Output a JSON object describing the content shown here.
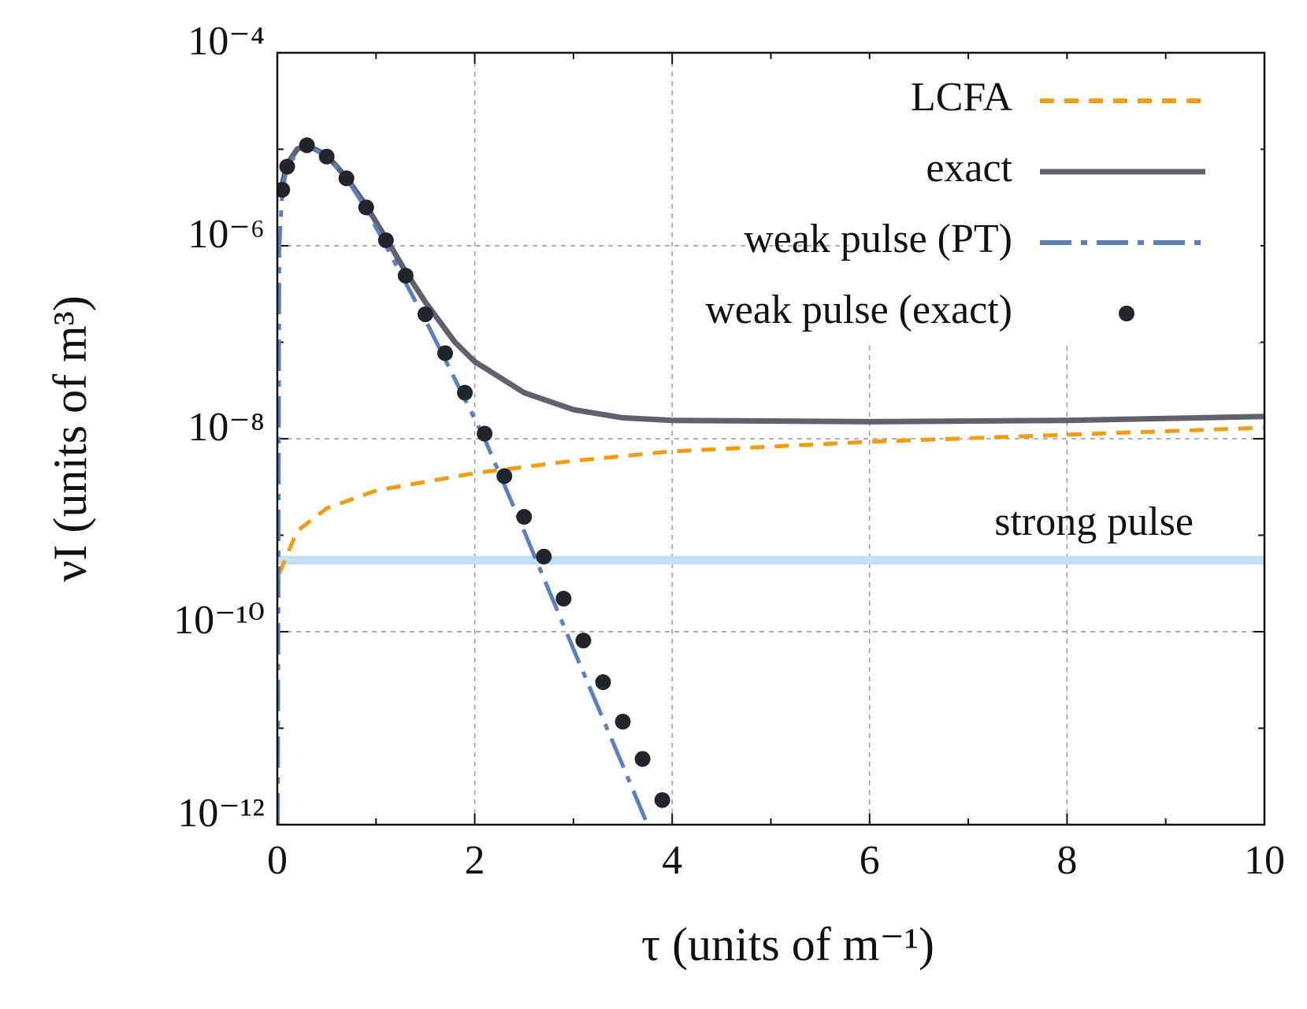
{
  "chart_data": {
    "type": "line",
    "x_label": "τ (units of m⁻¹)",
    "y_label": "νI (units of m³)",
    "xlim": [
      0,
      10
    ],
    "xticks": [
      0,
      2,
      4,
      6,
      8,
      10
    ],
    "xminorticks": [
      1,
      3,
      5,
      7,
      9
    ],
    "ylim": [
      1e-12,
      0.0001
    ],
    "yscale": "log",
    "yticks": [
      {
        "value": 1e-12,
        "label": "10⁻¹²"
      },
      {
        "value": 1e-10,
        "label": "10⁻¹⁰"
      },
      {
        "value": 1e-08,
        "label": "10⁻⁸"
      },
      {
        "value": 1e-06,
        "label": "10⁻⁶"
      },
      {
        "value": 0.0001,
        "label": "10⁻⁴"
      }
    ],
    "yminorticks": [
      1e-11,
      1e-09,
      1e-07,
      1e-05
    ],
    "grid": true,
    "legend": "upper right",
    "series": [
      {
        "name": "LCFA",
        "color": "#f39c12",
        "style": "dashed",
        "x": [
          0.02,
          0.2,
          0.5,
          1,
          2,
          3,
          4,
          6,
          8,
          10
        ],
        "values": [
          4e-10,
          1.1e-09,
          1.9e-09,
          2.9e-09,
          4.4e-09,
          5.9e-09,
          7.4e-09,
          9.3e-09,
          1.1e-08,
          1.3e-08
        ]
      },
      {
        "name": "exact",
        "color": "#60606e",
        "style": "solid",
        "x": [
          0.05,
          0.1,
          0.2,
          0.3,
          0.5,
          0.7,
          0.9,
          1.1,
          1.3,
          1.5,
          1.8,
          2.0,
          2.5,
          3,
          3.5,
          4,
          6,
          8,
          10
        ],
        "values": [
          4.4e-06,
          7e-06,
          1e-05,
          1.1e-05,
          8.7e-06,
          5.1e-06,
          2.6e-06,
          1.2e-06,
          5.4e-07,
          2.6e-07,
          1e-07,
          6.3e-08,
          3e-08,
          2e-08,
          1.65e-08,
          1.55e-08,
          1.5e-08,
          1.55e-08,
          1.7e-08
        ]
      },
      {
        "name": "weak pulse (PT)",
        "color": "#5a7fc0",
        "style": "dashdot",
        "x": [
          0.005,
          0.02,
          0.05,
          0.1,
          0.3,
          0.5,
          0.7,
          0.9,
          1.1,
          1.5,
          2.1,
          2.5,
          3,
          3.5,
          3.75
        ],
        "values": [
          1e-12,
          1e-06,
          3.5e-06,
          7e-06,
          1.1e-05,
          8.5e-06,
          5e-06,
          2.4e-06,
          1e-06,
          1.7e-07,
          1e-08,
          1.1e-09,
          6.6e-11,
          4.1e-12,
          1e-12
        ]
      },
      {
        "name": "weak pulse (exact)",
        "color": "#23252d",
        "style": "markers",
        "x": [
          0.05,
          0.1,
          0.3,
          0.5,
          0.7,
          0.9,
          1.1,
          1.3,
          1.5,
          1.7,
          1.9,
          2.1,
          2.3,
          2.5,
          2.7,
          2.9,
          3.1,
          3.3,
          3.5,
          3.7,
          3.9
        ],
        "values": [
          3.8e-06,
          6.6e-06,
          1.1e-05,
          8.4e-06,
          5e-06,
          2.5e-06,
          1.14e-06,
          4.9e-07,
          1.95e-07,
          7.7e-08,
          3e-08,
          1.13e-08,
          4.1e-09,
          1.55e-09,
          6e-10,
          2.2e-10,
          8.1e-11,
          3e-11,
          1.17e-11,
          4.8e-12,
          1.8e-12
        ]
      }
    ],
    "reference_lines": [
      {
        "label": "strong pulse",
        "y": 5.5e-10,
        "color": "#c3def5"
      }
    ]
  }
}
